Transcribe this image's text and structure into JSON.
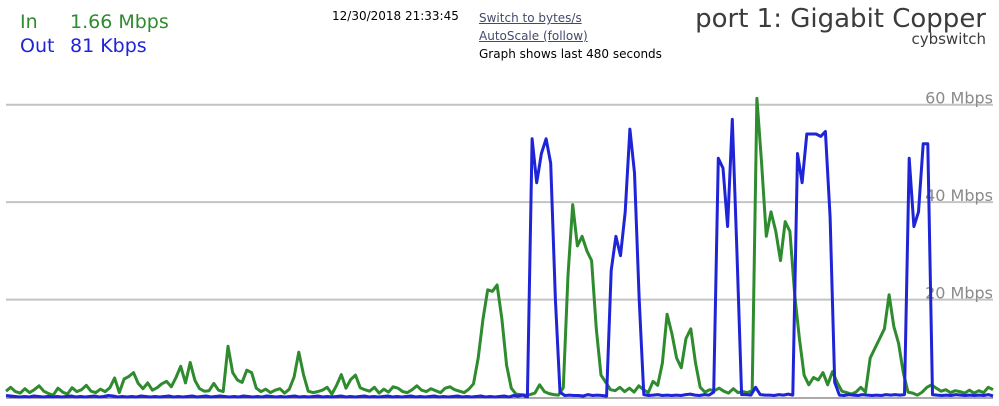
{
  "stats": {
    "in_label": "In",
    "in_value": "1.66 Mbps",
    "out_label": "Out",
    "out_value": "81 Kbps"
  },
  "timestamp": "12/30/2018 21:33:45",
  "links": {
    "switch_units": "Switch to bytes/s",
    "autoscale": "AutoScale (follow)",
    "window_note": "Graph shows last 480 seconds"
  },
  "header": {
    "port_title": "port 1: Gigabit Copper",
    "device": "cybswitch"
  },
  "colors": {
    "in": "#2e8b2e",
    "out": "#1f24d6",
    "grid": "#c4c4c4"
  },
  "chart_data": {
    "type": "line",
    "y_unit": "Mbps",
    "ylim": [
      0,
      62
    ],
    "window_seconds": 480,
    "gridlines": [
      {
        "value": 20,
        "label": "20 Mbps"
      },
      {
        "value": 40,
        "label": "40 Mbps"
      },
      {
        "value": 60,
        "label": "60 Mbps"
      }
    ],
    "series": [
      {
        "name": "In",
        "values": [
          1.2,
          2.0,
          1.1,
          0.8,
          1.7,
          0.9,
          1.5,
          2.3,
          1.2,
          0.7,
          0.4,
          1.8,
          1.0,
          0.6,
          1.9,
          1.1,
          1.5,
          2.4,
          1.2,
          0.9,
          1.6,
          1.1,
          1.9,
          3.9,
          0.9,
          3.7,
          4.2,
          5.0,
          2.8,
          1.7,
          2.9,
          1.4,
          1.9,
          2.7,
          3.2,
          2.1,
          4.0,
          6.3,
          2.9,
          7.1,
          3.4,
          1.7,
          1.2,
          1.3,
          2.8,
          1.4,
          1.1,
          10.4,
          5.0,
          3.5,
          3.0,
          5.5,
          5.0,
          1.8,
          1.1,
          1.6,
          0.9,
          1.4,
          1.7,
          0.8,
          1.6,
          4.1,
          9.2,
          4.6,
          1.2,
          0.9,
          1.1,
          1.4,
          2.0,
          0.6,
          2.4,
          4.6,
          1.8,
          3.6,
          4.5,
          1.9,
          1.5,
          1.2,
          2.0,
          0.8,
          1.6,
          1.0,
          2.1,
          1.8,
          1.1,
          0.9,
          1.5,
          2.3,
          1.4,
          1.1,
          1.7,
          1.3,
          0.9,
          1.8,
          2.1,
          1.5,
          1.2,
          0.9,
          1.6,
          2.7,
          8.0,
          16.0,
          22.0,
          21.7,
          23.0,
          16.0,
          6.5,
          1.8,
          0.6,
          0.5,
          0.4,
          0.5,
          0.8,
          2.5,
          1.1,
          0.7,
          0.5,
          0.4,
          1.9,
          25.0,
          39.5,
          31.0,
          33.0,
          30.0,
          28.0,
          14.0,
          4.5,
          3.0,
          1.5,
          1.3,
          2.0,
          1.1,
          1.8,
          1.0,
          2.3,
          1.5,
          0.9,
          3.2,
          2.4,
          7.0,
          17.0,
          13.0,
          8.0,
          6.0,
          12.0,
          14.0,
          7.0,
          2.0,
          1.0,
          1.5,
          1.3,
          1.8,
          1.2,
          0.8,
          1.7,
          0.9,
          1.1,
          0.9,
          1.3,
          61.3,
          48.0,
          33.0,
          38.0,
          34.0,
          28.0,
          36.0,
          34.0,
          21.0,
          12.0,
          4.5,
          2.5,
          4.0,
          3.5,
          5.0,
          2.5,
          5.2,
          3.0,
          1.2,
          0.9,
          0.6,
          1.0,
          2.0,
          1.0,
          8.0,
          10.0,
          12.0,
          14.0,
          21.0,
          14.5,
          11.0,
          5.0,
          1.0,
          0.8,
          0.4,
          1.0,
          2.0,
          2.5,
          1.8,
          1.2,
          1.5,
          0.9,
          1.3,
          1.1,
          0.8,
          1.4,
          0.8,
          1.3,
          0.9,
          2.0,
          1.5
        ]
      },
      {
        "name": "Out",
        "values": [
          0.3,
          0.2,
          0.1,
          0.0,
          0.1,
          0.0,
          0.2,
          0.1,
          0.0,
          0.1,
          0.0,
          0.1,
          0.0,
          0.1,
          0.2,
          0.0,
          0.1,
          0.0,
          0.1,
          0.2,
          0.0,
          0.1,
          0.3,
          0.2,
          0.0,
          0.1,
          0.0,
          0.1,
          0.0,
          0.2,
          0.1,
          0.0,
          0.1,
          0.0,
          0.1,
          0.2,
          0.0,
          0.1,
          0.0,
          0.1,
          0.2,
          0.0,
          0.1,
          0.2,
          0.0,
          0.1,
          0.2,
          0.1,
          0.0,
          0.1,
          0.0,
          0.2,
          0.1,
          0.0,
          0.1,
          0.0,
          0.2,
          0.1,
          0.0,
          0.1,
          0.0,
          0.1,
          0.2,
          0.0,
          0.1,
          0.0,
          0.1,
          0.2,
          0.0,
          0.1,
          0.0,
          0.1,
          0.2,
          0.0,
          0.1,
          0.0,
          0.1,
          0.2,
          0.0,
          0.1,
          0.0,
          0.1,
          0.2,
          0.0,
          0.1,
          0.0,
          0.1,
          0.2,
          0.0,
          0.1,
          0.0,
          0.1,
          0.2,
          0.0,
          0.1,
          0.0,
          0.1,
          0.2,
          0.0,
          0.1,
          0.0,
          0.1,
          0.2,
          0.0,
          0.1,
          0.0,
          0.1,
          0.2,
          0.0,
          0.3,
          0.2,
          0.4,
          0.0,
          53.0,
          44.0,
          50.0,
          53.0,
          48.0,
          20.0,
          1.0,
          0.3,
          0.4,
          0.3,
          0.3,
          0.2,
          0.5,
          0.3,
          0.4,
          0.3,
          0.2,
          26.0,
          33.0,
          29.0,
          38.0,
          55.0,
          46.0,
          20.0,
          0.5,
          0.3,
          0.4,
          0.5,
          0.3,
          0.4,
          0.3,
          0.4,
          0.3,
          0.5,
          0.6,
          0.4,
          0.3,
          0.5,
          0.4,
          1.0,
          49.0,
          47.0,
          35.0,
          57.0,
          30.0,
          0.5,
          0.5,
          0.4,
          2.0,
          0.5,
          0.4,
          0.4,
          0.3,
          0.5,
          0.4,
          0.6,
          0.4,
          50.0,
          44.0,
          54.0,
          54.0,
          54.0,
          53.5,
          54.5,
          37.0,
          3.0,
          0.4,
          0.3,
          0.5,
          0.4,
          0.3,
          0.5,
          0.4,
          0.3,
          0.4,
          0.3,
          0.5,
          0.4,
          0.5,
          0.4,
          0.5,
          49.0,
          35.0,
          38.0,
          52.0,
          52.0,
          0.5,
          0.4,
          0.3,
          0.4,
          0.3,
          0.5,
          0.4,
          0.3,
          0.4,
          0.3,
          0.4,
          0.3,
          0.5,
          0.2
        ]
      }
    ]
  }
}
